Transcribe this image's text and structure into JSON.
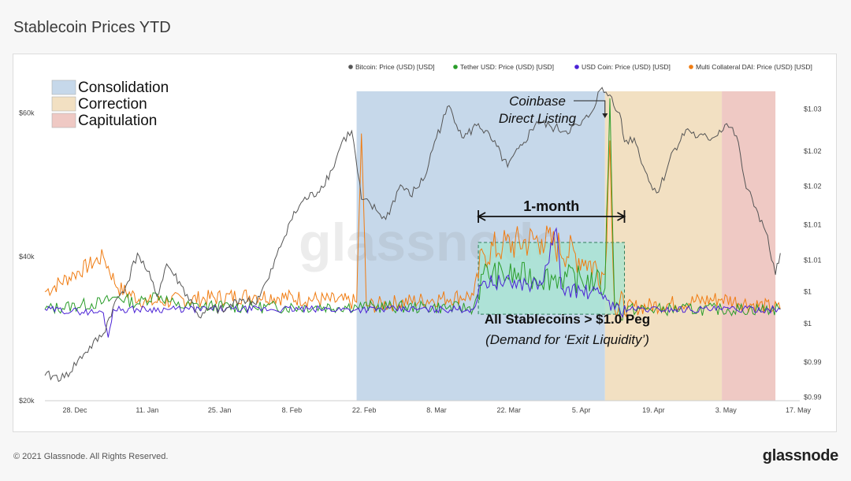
{
  "page": {
    "title": "Stablecoin Prices YTD",
    "copyright": "© 2021 Glassnode. All Rights Reserved.",
    "brand": "glassnode",
    "watermark": "glassnode"
  },
  "colors": {
    "bitcoin": "#555555",
    "tether": "#2a9d2a",
    "usdc": "#4b22d6",
    "dai": "#f07c12",
    "consolidation": "#c6d8ea",
    "correction": "#f2e0c2",
    "capitulation": "#efc9c4",
    "peg_box": "#a5e5d0"
  },
  "chart_data": {
    "type": "line",
    "title": "Stablecoin Prices YTD",
    "x_ticks": [
      "28. Dec",
      "11. Jan",
      "25. Jan",
      "8. Feb",
      "22. Feb",
      "8. Mar",
      "22. Mar",
      "5. Apr",
      "19. Apr",
      "3. May",
      "17. May"
    ],
    "x_start": "2020-12-20",
    "x_end": "2021-05-24",
    "y_left": {
      "ticks": [
        "$20k",
        "$40k",
        "$60k"
      ],
      "range": [
        20000,
        63000
      ]
    },
    "y_right": {
      "ticks": [
        "$0.99",
        "$0.99",
        "$1",
        "$1",
        "$1.01",
        "$1.01",
        "$1.02",
        "$1.02",
        "$1.03"
      ],
      "range": [
        0.987,
        1.031
      ]
    },
    "legend": {
      "position": "top-right",
      "items": [
        {
          "key": "bitcoin",
          "label": "Bitcoin: Price (USD) [USD]"
        },
        {
          "key": "tether",
          "label": "Tether USD: Price (USD) [USD]"
        },
        {
          "key": "usdc",
          "label": "USD Coin: Price (USD) [USD]"
        },
        {
          "key": "dai",
          "label": "Multi Collateral DAI: Price (USD) [USD]"
        }
      ]
    },
    "phase_legend": [
      {
        "key": "consolidation",
        "label": "Consolidation"
      },
      {
        "key": "correction",
        "label": "Correction"
      },
      {
        "key": "capitulation",
        "label": "Capitulation"
      }
    ],
    "phases": [
      {
        "key": "consolidation",
        "start": "2021-02-22",
        "end": "2021-04-14"
      },
      {
        "key": "correction",
        "start": "2021-04-14",
        "end": "2021-05-08"
      },
      {
        "key": "capitulation",
        "start": "2021-05-08",
        "end": "2021-05-19"
      }
    ],
    "bitcoin": [
      [
        "2020-12-20",
        23500
      ],
      [
        "2020-12-24",
        23200
      ],
      [
        "2020-12-28",
        26500
      ],
      [
        "2021-01-01",
        29300
      ],
      [
        "2021-01-03",
        33000
      ],
      [
        "2021-01-06",
        36500
      ],
      [
        "2021-01-08",
        40500
      ],
      [
        "2021-01-10",
        38000
      ],
      [
        "2021-01-12",
        34500
      ],
      [
        "2021-01-14",
        39000
      ],
      [
        "2021-01-17",
        36000
      ],
      [
        "2021-01-21",
        31500
      ],
      [
        "2021-01-23",
        32800
      ],
      [
        "2021-01-26",
        32500
      ],
      [
        "2021-01-29",
        34200
      ],
      [
        "2021-02-01",
        33500
      ],
      [
        "2021-02-04",
        37000
      ],
      [
        "2021-02-08",
        44500
      ],
      [
        "2021-02-11",
        47800
      ],
      [
        "2021-02-14",
        49000
      ],
      [
        "2021-02-17",
        52100
      ],
      [
        "2021-02-19",
        56000
      ],
      [
        "2021-02-21",
        57500
      ],
      [
        "2021-02-23",
        48000
      ],
      [
        "2021-02-26",
        46500
      ],
      [
        "2021-02-28",
        45200
      ],
      [
        "2021-03-03",
        50000
      ],
      [
        "2021-03-05",
        48500
      ],
      [
        "2021-03-08",
        51000
      ],
      [
        "2021-03-10",
        56000
      ],
      [
        "2021-03-13",
        61000
      ],
      [
        "2021-03-16",
        56500
      ],
      [
        "2021-03-19",
        58500
      ],
      [
        "2021-03-22",
        56000
      ],
      [
        "2021-03-25",
        52500
      ],
      [
        "2021-03-28",
        55500
      ],
      [
        "2021-03-31",
        58800
      ],
      [
        "2021-04-03",
        58000
      ],
      [
        "2021-04-06",
        57500
      ],
      [
        "2021-04-09",
        58300
      ],
      [
        "2021-04-11",
        59800
      ],
      [
        "2021-04-13",
        63200
      ],
      [
        "2021-04-15",
        62500
      ],
      [
        "2021-04-17",
        60000
      ],
      [
        "2021-04-18",
        56000
      ],
      [
        "2021-04-20",
        56500
      ],
      [
        "2021-04-23",
        50500
      ],
      [
        "2021-04-25",
        49000
      ],
      [
        "2021-04-28",
        54800
      ],
      [
        "2021-05-01",
        57800
      ],
      [
        "2021-05-03",
        56600
      ],
      [
        "2021-05-06",
        56500
      ],
      [
        "2021-05-09",
        58500
      ],
      [
        "2021-05-11",
        56800
      ],
      [
        "2021-05-13",
        49500
      ],
      [
        "2021-05-15",
        46800
      ],
      [
        "2021-05-17",
        43500
      ],
      [
        "2021-05-19",
        37500
      ],
      [
        "2021-05-20",
        40500
      ]
    ],
    "series_baseline": 1.0,
    "tether": [
      [
        "2020-12-20",
        1.0
      ],
      [
        "2021-01-01",
        1.001
      ],
      [
        "2021-01-04",
        1.0018
      ],
      [
        "2021-01-08",
        1.0008
      ],
      [
        "2021-01-12",
        1.0022
      ],
      [
        "2021-01-16",
        1.0005
      ],
      [
        "2021-02-01",
        1.0003
      ],
      [
        "2021-02-22",
        1.0004
      ],
      [
        "2021-03-18",
        1.0002
      ],
      [
        "2021-03-20",
        1.005
      ],
      [
        "2021-04-05",
        1.0045
      ],
      [
        "2021-04-12",
        1.004
      ],
      [
        "2021-04-14",
        1.003
      ],
      [
        "2021-04-15",
        1.03
      ],
      [
        "2021-04-16",
        1.0
      ],
      [
        "2021-05-20",
        1.0
      ]
    ],
    "usdc": [
      [
        "2020-12-20",
        1.0
      ],
      [
        "2021-01-01",
        0.9995
      ],
      [
        "2021-01-02",
        0.996
      ],
      [
        "2021-01-03",
        1.0
      ],
      [
        "2021-02-22",
        1.0
      ],
      [
        "2021-03-18",
        1.0
      ],
      [
        "2021-03-20",
        1.004
      ],
      [
        "2021-04-01",
        1.0035
      ],
      [
        "2021-04-04",
        1.0115
      ],
      [
        "2021-04-05",
        1.003
      ],
      [
        "2021-04-14",
        1.002
      ],
      [
        "2021-04-16",
        1.0
      ],
      [
        "2021-05-20",
        1.0
      ]
    ],
    "dai": [
      [
        "2020-12-20",
        1.0025
      ],
      [
        "2020-12-26",
        1.005
      ],
      [
        "2021-01-01",
        1.0075
      ],
      [
        "2021-01-04",
        1.003
      ],
      [
        "2021-01-10",
        1.001
      ],
      [
        "2021-02-01",
        1.002
      ],
      [
        "2021-02-22",
        1.001
      ],
      [
        "2021-02-23",
        1.025
      ],
      [
        "2021-02-24",
        1.0005
      ],
      [
        "2021-03-18",
        1.002
      ],
      [
        "2021-03-20",
        1.008
      ],
      [
        "2021-03-24",
        1.009
      ],
      [
        "2021-04-01",
        1.01
      ],
      [
        "2021-04-10",
        1.007
      ],
      [
        "2021-04-14",
        1.005
      ],
      [
        "2021-04-15",
        1.024
      ],
      [
        "2021-04-16",
        1.0
      ],
      [
        "2021-05-08",
        1.0015
      ],
      [
        "2021-05-20",
        1.0
      ]
    ],
    "annotations": {
      "coinbase_line1": "Coinbase",
      "coinbase_line2": "Direct Listing",
      "coinbase_date": "2021-04-14",
      "one_month": "1-month",
      "one_month_start": "2021-03-19",
      "one_month_end": "2021-04-18",
      "peg_line1": "All Stablecoins > $1.0 Peg",
      "peg_line2": "(Demand for ‘Exit Liquidity’)"
    }
  }
}
